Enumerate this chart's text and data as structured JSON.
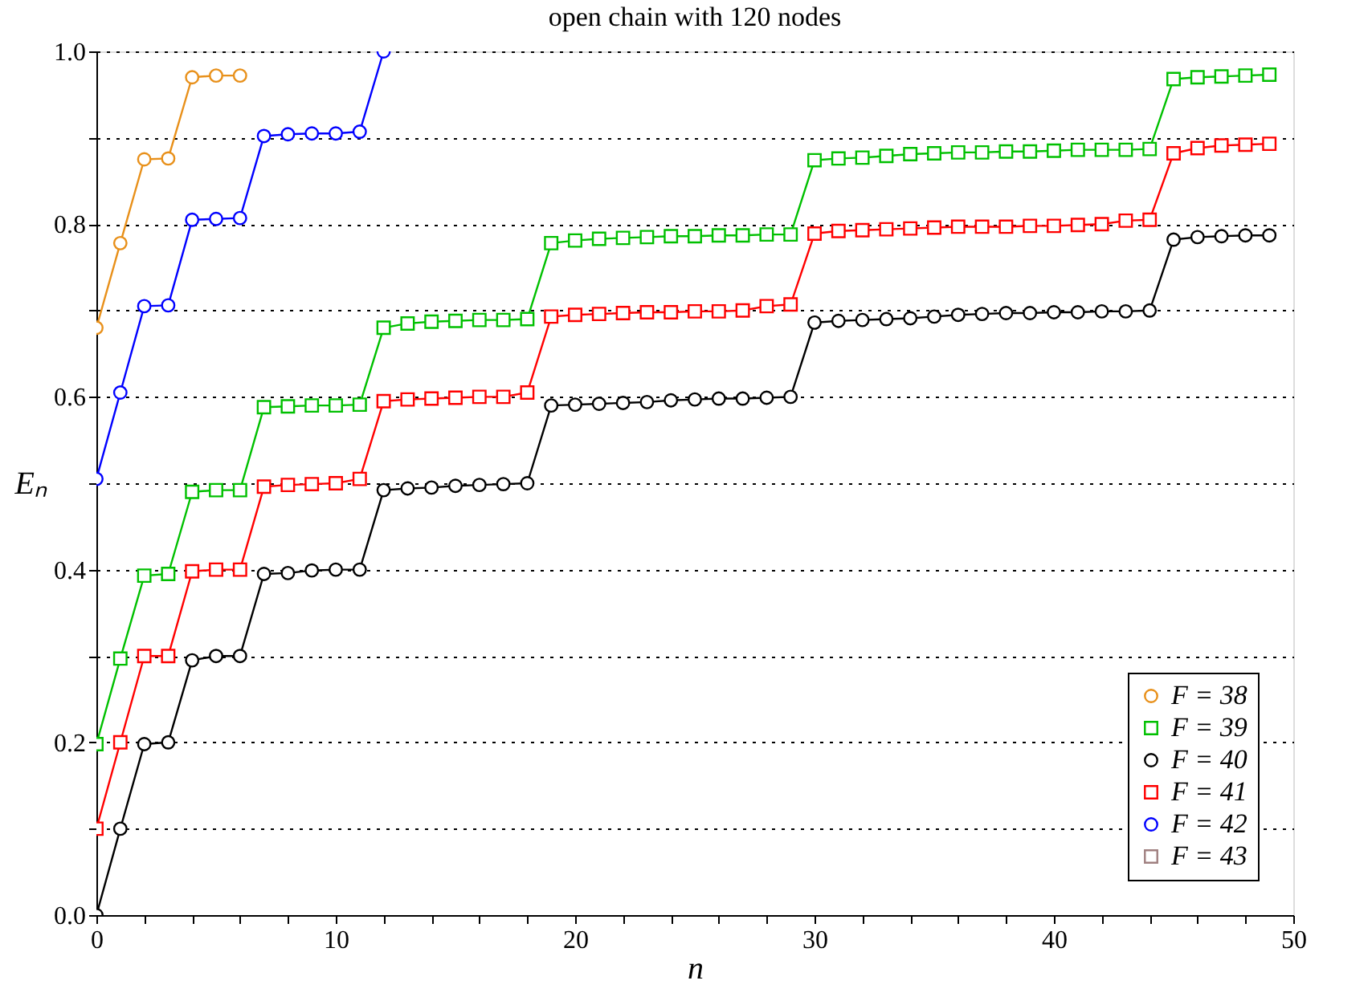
{
  "chart_data": {
    "type": "line",
    "title": "open chain with 120 nodes",
    "xlabel": "n",
    "ylabel": "Eₙ",
    "xlim": [
      0,
      50
    ],
    "ylim": [
      0,
      1
    ],
    "xticks": [
      0,
      {
        "value": 2,
        "label": null
      },
      {
        "value": 4,
        "label": null
      },
      {
        "value": 6,
        "label": null
      },
      {
        "value": 8,
        "label": null
      },
      10,
      {
        "value": 12,
        "label": null
      },
      {
        "value": 14,
        "label": null
      },
      {
        "value": 16,
        "label": null
      },
      {
        "value": 18,
        "label": null
      },
      20,
      {
        "value": 22,
        "label": null
      },
      {
        "value": 24,
        "label": null
      },
      {
        "value": 26,
        "label": null
      },
      {
        "value": 28,
        "label": null
      },
      30,
      {
        "value": 32,
        "label": null
      },
      {
        "value": 34,
        "label": null
      },
      {
        "value": 36,
        "label": null
      },
      {
        "value": 38,
        "label": null
      },
      40,
      {
        "value": 42,
        "label": null
      },
      {
        "value": 44,
        "label": null
      },
      {
        "value": 46,
        "label": null
      },
      {
        "value": 48,
        "label": null
      },
      50
    ],
    "yticks": [
      {
        "value": 0,
        "label": "0.0"
      },
      {
        "value": 0.1,
        "label": null
      },
      {
        "value": 0.2,
        "label": "0.2"
      },
      {
        "value": 0.3,
        "label": null
      },
      {
        "value": 0.4,
        "label": "0.4"
      },
      {
        "value": 0.5,
        "label": null
      },
      {
        "value": 0.6,
        "label": "0.6"
      },
      {
        "value": 0.7,
        "label": null
      },
      {
        "value": 0.8,
        "label": "0.8"
      },
      {
        "value": 0.9,
        "label": null
      },
      {
        "value": 1,
        "label": "1.0"
      }
    ],
    "grid": "y",
    "legend": "bottom right",
    "line_style": "solid",
    "series": [
      {
        "name": "F = 38",
        "color": "#e8901a",
        "marker": "circle",
        "x": [
          0,
          1,
          2,
          3,
          4,
          5,
          6
        ],
        "values": [
          0.68,
          0.778,
          0.875,
          0.876,
          0.97,
          0.972,
          0.972
        ]
      },
      {
        "name": "F = 39",
        "color": "#00c000",
        "marker": "square",
        "x": [
          0,
          1,
          2,
          3,
          4,
          5,
          6,
          7,
          8,
          9,
          10,
          11,
          12,
          13,
          14,
          15,
          16,
          17,
          18,
          19,
          20,
          21,
          22,
          23,
          24,
          25,
          26,
          27,
          28,
          29,
          30,
          31,
          32,
          33,
          34,
          35,
          36,
          37,
          38,
          39,
          40,
          41,
          42,
          43,
          44,
          45,
          46,
          47,
          48,
          49
        ],
        "values": [
          0.198,
          0.297,
          0.393,
          0.395,
          0.49,
          0.492,
          0.492,
          0.588,
          0.589,
          0.59,
          0.59,
          0.591,
          0.68,
          0.685,
          0.687,
          0.688,
          0.689,
          0.689,
          0.69,
          0.778,
          0.781,
          0.783,
          0.784,
          0.785,
          0.786,
          0.786,
          0.787,
          0.787,
          0.788,
          0.788,
          0.874,
          0.876,
          0.877,
          0.879,
          0.881,
          0.882,
          0.883,
          0.883,
          0.884,
          0.884,
          0.885,
          0.886,
          0.886,
          0.886,
          0.887,
          0.968,
          0.97,
          0.971,
          0.972,
          0.973
        ]
      },
      {
        "name": "F = 40",
        "color": "#000000",
        "marker": "circle",
        "x": [
          0,
          1,
          2,
          3,
          4,
          5,
          6,
          7,
          8,
          9,
          10,
          11,
          12,
          13,
          14,
          15,
          16,
          17,
          18,
          19,
          20,
          21,
          22,
          23,
          24,
          25,
          26,
          27,
          28,
          29,
          30,
          31,
          32,
          33,
          34,
          35,
          36,
          37,
          38,
          39,
          40,
          41,
          42,
          43,
          44,
          45,
          46,
          47,
          48,
          49
        ],
        "values": [
          0,
          0.1,
          0.198,
          0.2,
          0.295,
          0.3,
          0.3,
          0.395,
          0.396,
          0.399,
          0.4,
          0.4,
          0.492,
          0.494,
          0.495,
          0.497,
          0.498,
          0.499,
          0.5,
          0.59,
          0.591,
          0.592,
          0.593,
          0.594,
          0.596,
          0.597,
          0.598,
          0.598,
          0.599,
          0.6,
          0.686,
          0.688,
          0.689,
          0.69,
          0.691,
          0.693,
          0.695,
          0.696,
          0.697,
          0.697,
          0.698,
          0.698,
          0.699,
          0.699,
          0.7,
          0.782,
          0.785,
          0.786,
          0.787,
          0.787
        ]
      },
      {
        "name": "F = 41",
        "color": "#ff0000",
        "marker": "square",
        "x": [
          0,
          1,
          2,
          3,
          4,
          5,
          6,
          7,
          8,
          9,
          10,
          11,
          12,
          13,
          14,
          15,
          16,
          17,
          18,
          19,
          20,
          21,
          22,
          23,
          24,
          25,
          26,
          27,
          28,
          29,
          30,
          31,
          32,
          33,
          34,
          35,
          36,
          37,
          38,
          39,
          40,
          41,
          42,
          43,
          44,
          45,
          46,
          47,
          48,
          49
        ],
        "values": [
          0.1,
          0.2,
          0.3,
          0.3,
          0.398,
          0.4,
          0.4,
          0.496,
          0.498,
          0.499,
          0.5,
          0.505,
          0.595,
          0.597,
          0.598,
          0.599,
          0.6,
          0.6,
          0.605,
          0.693,
          0.695,
          0.696,
          0.697,
          0.698,
          0.698,
          0.699,
          0.699,
          0.7,
          0.705,
          0.707,
          0.789,
          0.792,
          0.793,
          0.794,
          0.795,
          0.796,
          0.797,
          0.797,
          0.797,
          0.798,
          0.798,
          0.799,
          0.8,
          0.804,
          0.805,
          0.882,
          0.888,
          0.891,
          0.892,
          0.893
        ]
      },
      {
        "name": "F = 42",
        "color": "#0000ff",
        "marker": "circle",
        "x": [
          0,
          1,
          2,
          3,
          4,
          5,
          6,
          7,
          8,
          9,
          10,
          11,
          12
        ],
        "values": [
          0.505,
          0.605,
          0.705,
          0.706,
          0.805,
          0.806,
          0.807,
          0.902,
          0.904,
          0.905,
          0.905,
          0.907,
          1.0
        ]
      },
      {
        "name": "F = 43",
        "color": "#a08080",
        "marker": "square"
      }
    ]
  }
}
